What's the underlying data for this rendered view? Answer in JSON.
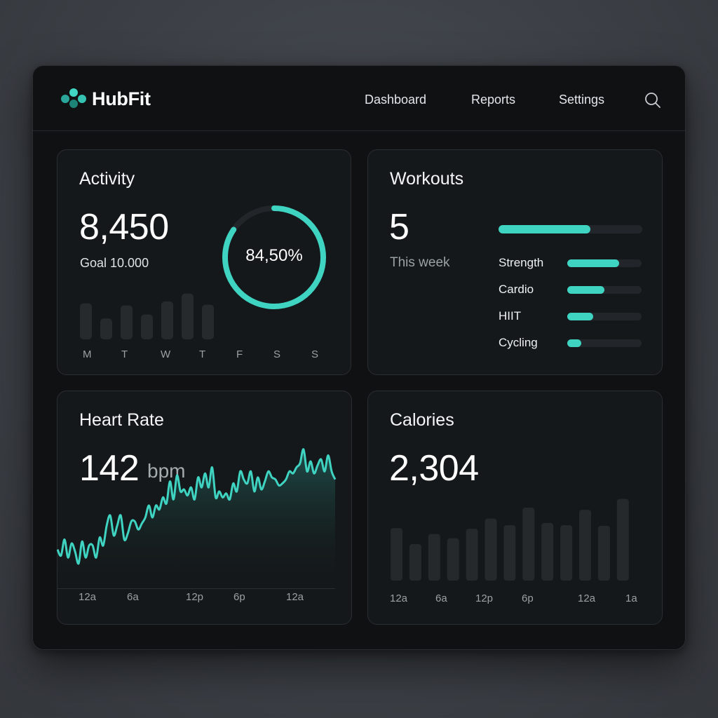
{
  "app": {
    "name": "HubFit"
  },
  "nav": {
    "items": [
      {
        "label": "Dashboard"
      },
      {
        "label": "Reports"
      },
      {
        "label": "Settings"
      }
    ],
    "search_icon": "search-icon"
  },
  "colors": {
    "accent": "#3fd3c1",
    "background": "#0f1112",
    "card": "#15181a",
    "bar_muted": "#2a2e31"
  },
  "activity": {
    "title": "Activity",
    "steps": "8,450",
    "goal": "Goal 10.000",
    "progress_label": "84,50%",
    "progress_fraction": 0.845,
    "days": [
      "M",
      "T",
      "W",
      "T",
      "F",
      "S",
      "S"
    ],
    "bar_values": [
      55,
      32,
      52,
      38,
      58,
      70,
      53
    ]
  },
  "workouts": {
    "title": "Workouts",
    "count": "5",
    "subtitle": "This week",
    "total_fraction": 0.64,
    "categories": [
      {
        "label": "Strength",
        "fraction": 0.7
      },
      {
        "label": "Cardio",
        "fraction": 0.5
      },
      {
        "label": "HIIT",
        "fraction": 0.35
      },
      {
        "label": "Cycling",
        "fraction": 0.19
      }
    ]
  },
  "heart_rate": {
    "title": "Heart Rate",
    "value": "142",
    "unit": "bpm",
    "x_labels": [
      "12a",
      "6a",
      "12p",
      "6p",
      "12a"
    ],
    "series": [
      118,
      112,
      128,
      110,
      124,
      116,
      104,
      126,
      110,
      122,
      122,
      110,
      130,
      122,
      142,
      152,
      132,
      142,
      152,
      128,
      134,
      146,
      146,
      138,
      144,
      150,
      162,
      150,
      162,
      158,
      170,
      164,
      186,
      168,
      192,
      176,
      178,
      172,
      180,
      168,
      190,
      180,
      194,
      180,
      200,
      170,
      176,
      170,
      174,
      168,
      184,
      176,
      196,
      188,
      184,
      196,
      176,
      190,
      178,
      186,
      196,
      190,
      188,
      182,
      184,
      188,
      196,
      194,
      200,
      204,
      218,
      196,
      206,
      194,
      202,
      208,
      196,
      212,
      196,
      188
    ],
    "y_range": [
      80,
      220
    ]
  },
  "calories": {
    "title": "Calories",
    "value": "2,304",
    "x_labels": [
      "12a",
      "6a",
      "12p",
      "6p",
      "12a",
      "1a"
    ],
    "bar_values": [
      72,
      50,
      64,
      58,
      71,
      85,
      76,
      100,
      79,
      76,
      97,
      75,
      112
    ]
  }
}
